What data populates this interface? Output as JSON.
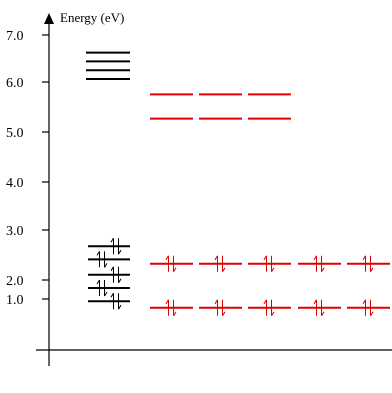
{
  "axis": {
    "title": "Energy (eV)",
    "ticks": [
      "1.0",
      "2.0",
      "3.0",
      "4.0",
      "5.0",
      "6.0",
      "7.0"
    ]
  },
  "levels": {
    "black_stack": [
      6.6,
      6.4,
      6.2,
      6.0
    ],
    "red_upper": [
      5.65,
      5.1
    ],
    "black_occupied": [
      2.2,
      1.9,
      1.55,
      1.25,
      0.95
    ],
    "red_occupied": [
      1.8,
      0.8
    ]
  },
  "groups": {
    "red_upper_count": 3,
    "red_occupied_count": 5
  },
  "colors": {
    "black": "#000000",
    "red": "#e00000"
  }
}
